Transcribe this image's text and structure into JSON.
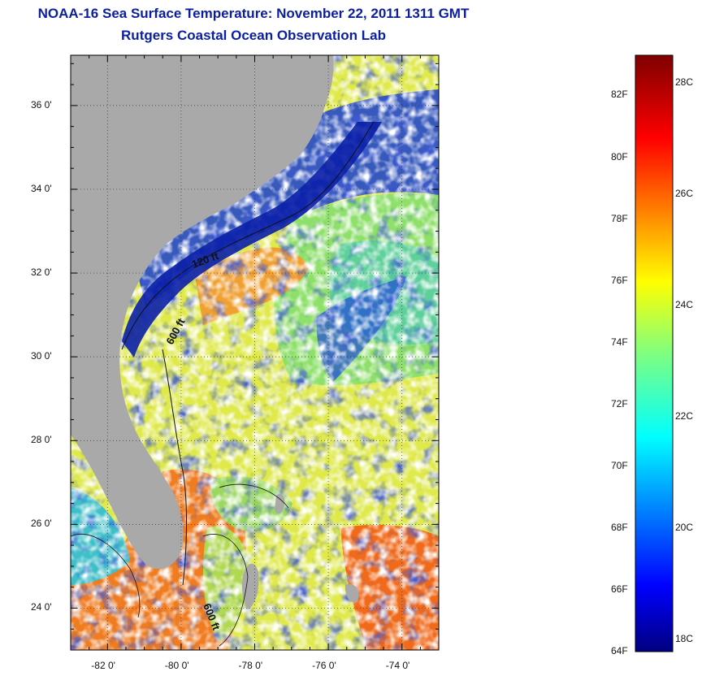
{
  "header": {
    "title": "NOAA-16 Sea Surface Temperature:  November 22, 2011 1311 GMT",
    "subtitle": "Rutgers Coastal Ocean Observation Lab"
  },
  "map": {
    "lat_range": [
      23.0,
      37.2
    ],
    "lon_range": [
      -83.0,
      -73.0
    ],
    "lat_ticks": [
      "36 0'",
      "34 0'",
      "32 0'",
      "30 0'",
      "28 0'",
      "26 0'",
      "24 0'"
    ],
    "lat_tick_values": [
      36,
      34,
      32,
      30,
      28,
      26,
      24
    ],
    "lon_ticks": [
      "-82 0'",
      "-80 0'",
      "-78 0'",
      "-76 0'",
      "-74 0'"
    ],
    "lon_tick_values": [
      -82,
      -80,
      -78,
      -76,
      -74
    ],
    "contour_labels": [
      "120 ft",
      "600 ft",
      "600 ft"
    ],
    "colors": {
      "land": "#a9a9a9",
      "cloud": "#ffffff",
      "warm": "#f07a1e",
      "mid": "#9fe05a",
      "cold": "#0a1fa8"
    }
  },
  "colorbar": {
    "f_labels": [
      "82F",
      "80F",
      "78F",
      "76F",
      "74F",
      "72F",
      "70F",
      "68F",
      "66F",
      "64F"
    ],
    "f_values": [
      82,
      80,
      78,
      76,
      74,
      72,
      70,
      68,
      66,
      64
    ],
    "c_labels": [
      "28C",
      "26C",
      "24C",
      "22C",
      "20C",
      "18C"
    ],
    "c_values": [
      28,
      26,
      24,
      22,
      20,
      18
    ],
    "range_f": [
      64,
      83.3
    ]
  }
}
